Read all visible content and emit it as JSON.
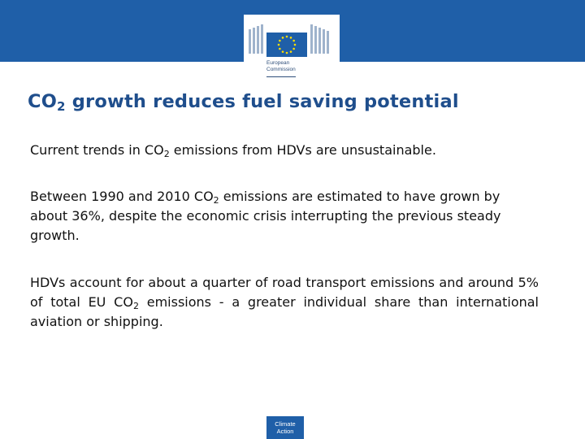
{
  "header": {
    "logo_line1": "European",
    "logo_line2": "Commission"
  },
  "title": {
    "prefix": "CO",
    "sub": "2",
    "rest": " growth reduces fuel saving potential"
  },
  "paragraphs": {
    "p1": {
      "a": "Current trends in CO",
      "sub": "2",
      "b": " emissions from HDVs are unsustainable."
    },
    "p2": {
      "a": "Between 1990 and 2010 CO",
      "sub": "2",
      "b": " emissions are estimated to have grown by about 36%, despite the economic crisis interrupting the previous steady growth."
    },
    "p3": {
      "a": "HDVs account for about a quarter of road transport emissions and around 5% of total EU CO",
      "sub": "2",
      "b": " emissions - a greater individual share than international aviation or shipping."
    }
  },
  "footer": {
    "line1": "Climate",
    "line2": "Action"
  },
  "colors": {
    "brand_blue": "#1f5fa8",
    "title_blue": "#1f4e8c",
    "star_yellow": "#ffdd00"
  }
}
